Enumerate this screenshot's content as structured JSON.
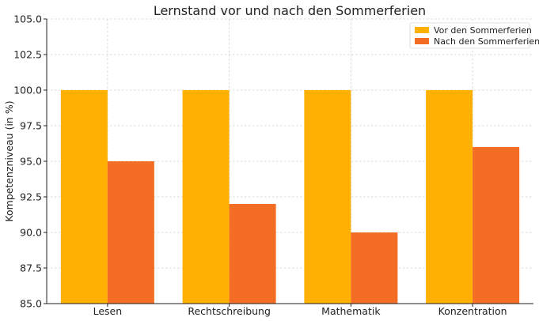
{
  "chart_data": {
    "type": "bar",
    "title": "Lernstand vor und nach den Sommerferien",
    "xlabel": "",
    "ylabel": "Kompetenzniveau (in %)",
    "categories": [
      "Lesen",
      "Rechtschreibung",
      "Mathematik",
      "Konzentration"
    ],
    "series": [
      {
        "name": "Vor den Sommerferien",
        "color": "#FFB000",
        "values": [
          100,
          100,
          100,
          100
        ]
      },
      {
        "name": "Nach den Sommerferien",
        "color": "#F46D25",
        "values": [
          95,
          92,
          90,
          96
        ]
      }
    ],
    "ylim": [
      85.0,
      105.0
    ],
    "yticks": [
      "85.0",
      "87.5",
      "90.0",
      "92.5",
      "95.0",
      "97.5",
      "100.0",
      "102.5",
      "105.0"
    ],
    "grid": true,
    "legend_position": "top-right"
  }
}
